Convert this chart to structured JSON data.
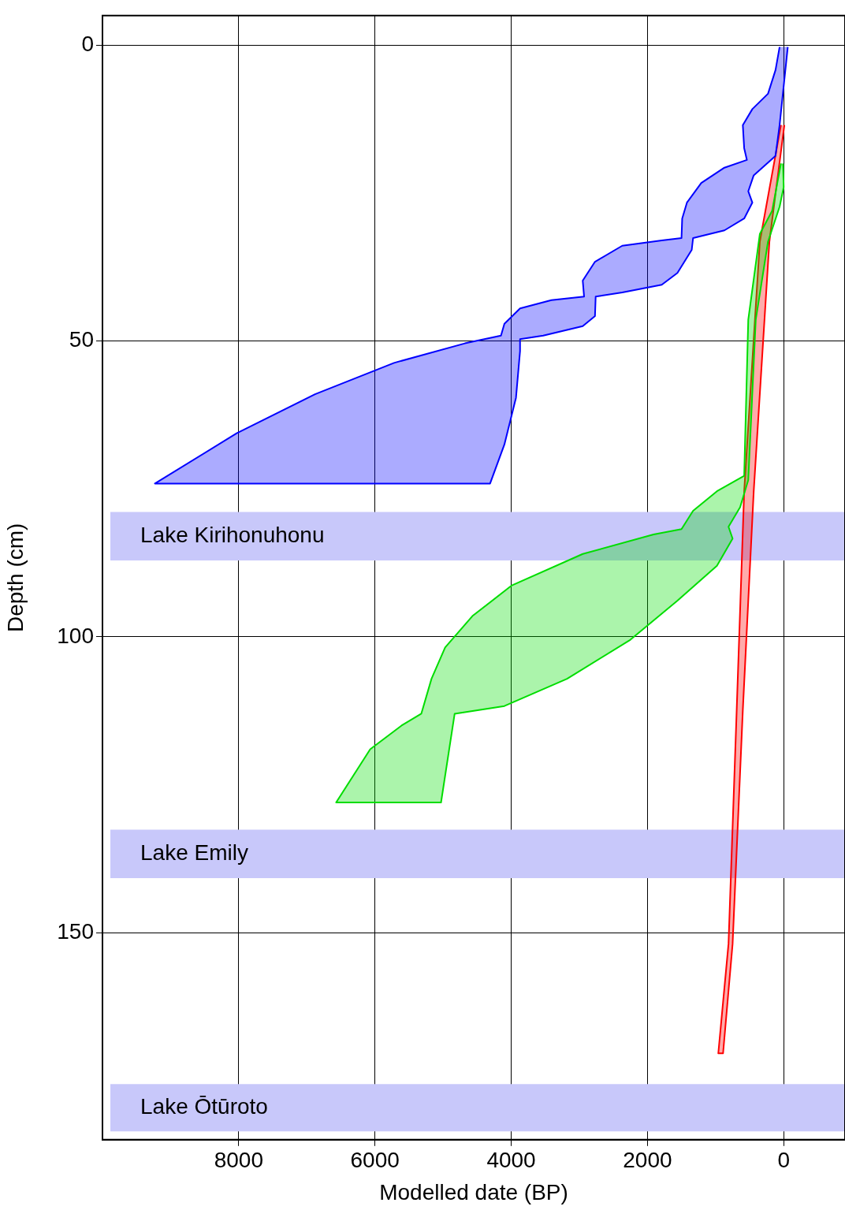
{
  "chart_data": {
    "type": "area",
    "xlabel": "Modelled date (BP)",
    "ylabel": "Depth (cm)",
    "xlim": [
      10000,
      -900
    ],
    "xticks": [
      8000,
      6000,
      4000,
      2000,
      0
    ],
    "ylim": [
      185,
      -5
    ],
    "yticks": [
      0,
      50,
      100,
      150
    ],
    "grid": true,
    "legend": false,
    "marker": "none",
    "bands": [
      {
        "axis": "y",
        "from": 78.9,
        "to": 87.1,
        "label": "Lake Kirihonuhonu",
        "color": "#c8c8fa"
      },
      {
        "axis": "y",
        "from": 132.6,
        "to": 140.8,
        "label": "Lake Emily",
        "color": "#c8c8fa"
      },
      {
        "axis": "y",
        "from": 175.6,
        "to": 183.6,
        "label": "Lake Ōtūroto",
        "color": "#c8c8fa"
      }
    ],
    "series": [
      {
        "color": "#0000ff",
        "x": [
          60,
          120,
          230,
          460,
          600,
          580,
          540,
          870,
          1210,
          1420,
          1490,
          1500,
          1790,
          2370,
          2770,
          2950,
          2930,
          3410,
          3870,
          4100,
          4150,
          4680,
          5720,
          6880,
          8030,
          9230,
          4310,
          4100,
          3930,
          3870,
          3870,
          3530,
          2950,
          2770,
          2760,
          2370,
          1790,
          1560,
          1350,
          1330,
          870,
          580,
          460,
          520,
          440,
          120,
          60,
          0,
          -60
        ],
        "values": [
          0.3,
          4.2,
          8.2,
          10.8,
          13.5,
          17.4,
          19.4,
          20.7,
          23.3,
          26.6,
          29.3,
          32.6,
          33,
          33.9,
          36.6,
          39.8,
          42.5,
          43.1,
          44.5,
          47.1,
          49.1,
          50.4,
          53.7,
          59,
          65.6,
          74.1,
          74.1,
          67.5,
          59.6,
          51.7,
          49.7,
          49.1,
          47.5,
          45.8,
          42.5,
          41.8,
          40.5,
          38.5,
          34.6,
          32.6,
          31.3,
          29.3,
          26.6,
          24.7,
          22,
          18.7,
          13.5,
          6.9,
          0.3
        ]
      },
      {
        "color": "#00dd00",
        "x": [
          40,
          170,
          350,
          520,
          580,
          980,
          1330,
          1500,
          1910,
          2950,
          3990,
          4570,
          4970,
          5170,
          5320,
          5610,
          6070,
          6570,
          5030,
          4910,
          4830,
          4100,
          3180,
          2250,
          1560,
          980,
          750,
          810,
          640,
          520,
          410,
          230,
          60,
          0,
          10
        ],
        "values": [
          20,
          28,
          31.9,
          46.4,
          72.8,
          75.4,
          78.7,
          81.8,
          82.7,
          86,
          91.3,
          96.5,
          101.8,
          107.1,
          113,
          115,
          119,
          128,
          128,
          119,
          113,
          111.7,
          107.1,
          100.5,
          93.9,
          88,
          83.4,
          81.4,
          78.1,
          73.5,
          46.4,
          33.2,
          27.3,
          24,
          20
        ]
      },
      {
        "color": "#ff0000",
        "x": [
          40,
          350,
          580,
          690,
          810,
          960,
          890,
          750,
          600,
          440,
          210,
          -10
        ],
        "values": [
          13.5,
          33.2,
          75.4,
          112.4,
          151.9,
          170.4,
          170.4,
          151.9,
          112.4,
          75.4,
          33.2,
          13.5
        ]
      }
    ]
  }
}
